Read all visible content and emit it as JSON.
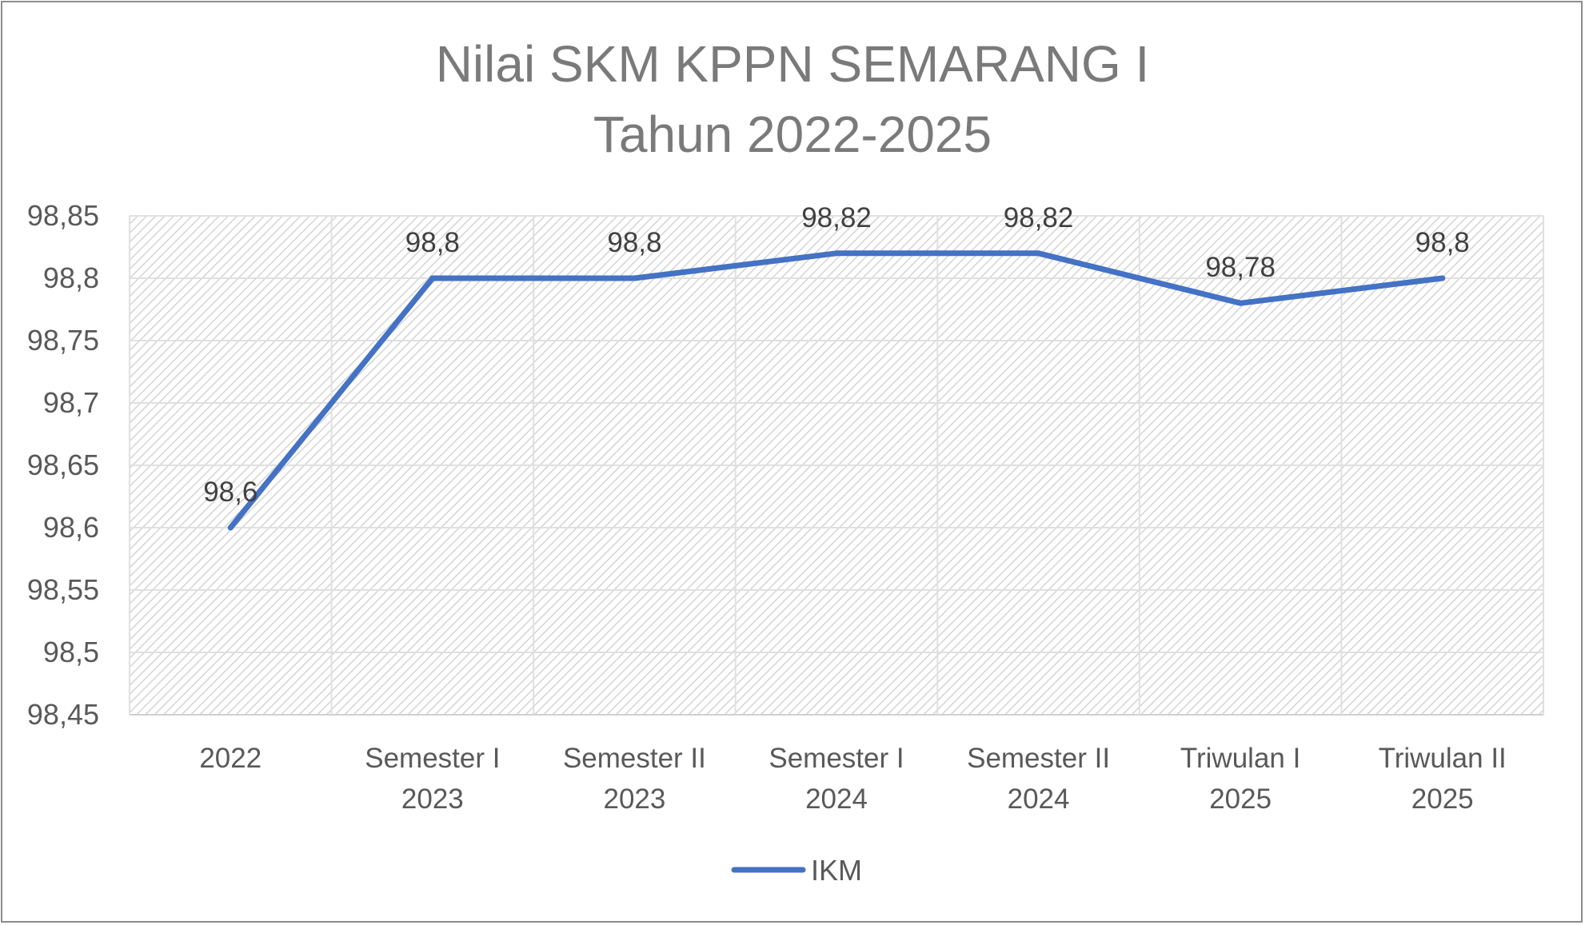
{
  "chart_data": {
    "type": "line",
    "title": [
      "Nilai SKM KPPN SEMARANG I",
      "Tahun 2022-2025"
    ],
    "categories": [
      [
        "2022"
      ],
      [
        "Semester I",
        "2023"
      ],
      [
        "Semester II",
        "2023"
      ],
      [
        "Semester I",
        "2024"
      ],
      [
        "Semester II",
        "2024"
      ],
      [
        "Triwulan I",
        "2025"
      ],
      [
        "Triwulan II",
        "2025"
      ]
    ],
    "series": [
      {
        "name": "IKM",
        "values": [
          98.6,
          98.8,
          98.8,
          98.82,
          98.82,
          98.78,
          98.8
        ],
        "data_labels": [
          "98,6",
          "98,8",
          "98,8",
          "98,82",
          "98,82",
          "98,78",
          "98,8"
        ],
        "color": "#4472c4"
      }
    ],
    "ylim": [
      98.45,
      98.85
    ],
    "yticks": [
      98.45,
      98.5,
      98.55,
      98.6,
      98.65,
      98.7,
      98.75,
      98.8,
      98.85
    ],
    "ytick_labels": [
      "98,45",
      "98,5",
      "98,55",
      "98,6",
      "98,65",
      "98,7",
      "98,75",
      "98,8",
      "98,85"
    ],
    "grid": true,
    "plot_background": "hatched-light-gray",
    "legend": "bottom",
    "xlabel": "",
    "ylabel": ""
  }
}
